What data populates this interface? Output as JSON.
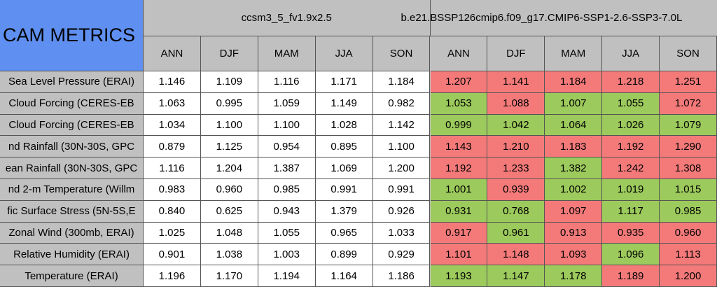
{
  "table": {
    "title": "CAM METRICS",
    "groups": [
      "ccsm3_5_fv1.9x2.5",
      "b.e21.BSSP126cmip6.f09_g17.CMIP6-SSP1-2.6-SSP3-7.0L"
    ],
    "columns": [
      "ANN",
      "DJF",
      "MAM",
      "JJA",
      "SON",
      "ANN",
      "DJF",
      "MAM",
      "JJA",
      "SON"
    ],
    "colors": {
      "red": "#f47a7a",
      "green": "#9cca5c",
      "plain": "#ffffff"
    },
    "rows": [
      {
        "label": "Sea Level Pressure (ERAI)",
        "values": [
          "1.146",
          "1.109",
          "1.116",
          "1.171",
          "1.184",
          "1.207",
          "1.141",
          "1.184",
          "1.218",
          "1.251"
        ],
        "status": [
          "plain",
          "plain",
          "plain",
          "plain",
          "plain",
          "red",
          "red",
          "red",
          "red",
          "red"
        ]
      },
      {
        "label": "Cloud Forcing (CERES-EB",
        "values": [
          "1.063",
          "0.995",
          "1.059",
          "1.149",
          "0.982",
          "1.053",
          "1.088",
          "1.007",
          "1.055",
          "1.072"
        ],
        "status": [
          "plain",
          "plain",
          "plain",
          "plain",
          "plain",
          "green",
          "red",
          "green",
          "green",
          "red"
        ]
      },
      {
        "label": "Cloud Forcing (CERES-EB",
        "values": [
          "1.034",
          "1.100",
          "1.100",
          "1.028",
          "1.142",
          "0.999",
          "1.042",
          "1.064",
          "1.026",
          "1.079"
        ],
        "status": [
          "plain",
          "plain",
          "plain",
          "plain",
          "plain",
          "green",
          "green",
          "green",
          "green",
          "green"
        ]
      },
      {
        "label": "nd Rainfall (30N-30S, GPC",
        "values": [
          "0.879",
          "1.125",
          "0.954",
          "0.895",
          "1.100",
          "1.143",
          "1.210",
          "1.183",
          "1.192",
          "1.290"
        ],
        "status": [
          "plain",
          "plain",
          "plain",
          "plain",
          "plain",
          "red",
          "red",
          "red",
          "red",
          "red"
        ]
      },
      {
        "label": "ean Rainfall (30N-30S, GPC",
        "values": [
          "1.116",
          "1.204",
          "1.387",
          "1.069",
          "1.200",
          "1.192",
          "1.233",
          "1.382",
          "1.242",
          "1.308"
        ],
        "status": [
          "plain",
          "plain",
          "plain",
          "plain",
          "plain",
          "red",
          "red",
          "green",
          "red",
          "red"
        ]
      },
      {
        "label": "nd 2-m Temperature (Willm",
        "values": [
          "0.983",
          "0.960",
          "0.985",
          "0.991",
          "0.991",
          "1.001",
          "0.939",
          "1.002",
          "1.019",
          "1.015"
        ],
        "status": [
          "plain",
          "plain",
          "plain",
          "plain",
          "plain",
          "green",
          "red",
          "green",
          "green",
          "green"
        ]
      },
      {
        "label": "fic Surface Stress (5N-5S,E",
        "values": [
          "0.840",
          "0.625",
          "0.943",
          "1.379",
          "0.926",
          "0.931",
          "0.768",
          "1.097",
          "1.117",
          "0.985"
        ],
        "status": [
          "plain",
          "plain",
          "plain",
          "plain",
          "plain",
          "green",
          "green",
          "red",
          "green",
          "green"
        ]
      },
      {
        "label": "Zonal Wind (300mb, ERAI)",
        "values": [
          "1.025",
          "1.048",
          "1.055",
          "0.965",
          "1.033",
          "0.917",
          "0.961",
          "0.913",
          "0.935",
          "0.960"
        ],
        "status": [
          "plain",
          "plain",
          "plain",
          "plain",
          "plain",
          "red",
          "green",
          "red",
          "red",
          "red"
        ]
      },
      {
        "label": "Relative Humidity (ERAI)",
        "values": [
          "0.901",
          "1.038",
          "1.003",
          "0.899",
          "0.929",
          "1.101",
          "1.148",
          "1.093",
          "1.096",
          "1.113"
        ],
        "status": [
          "plain",
          "plain",
          "plain",
          "plain",
          "plain",
          "red",
          "red",
          "red",
          "green",
          "red"
        ]
      },
      {
        "label": "Temperature (ERAI)",
        "values": [
          "1.196",
          "1.170",
          "1.194",
          "1.164",
          "1.186",
          "1.193",
          "1.147",
          "1.178",
          "1.189",
          "1.200"
        ],
        "status": [
          "plain",
          "plain",
          "plain",
          "plain",
          "plain",
          "green",
          "green",
          "green",
          "red",
          "red"
        ]
      }
    ]
  }
}
